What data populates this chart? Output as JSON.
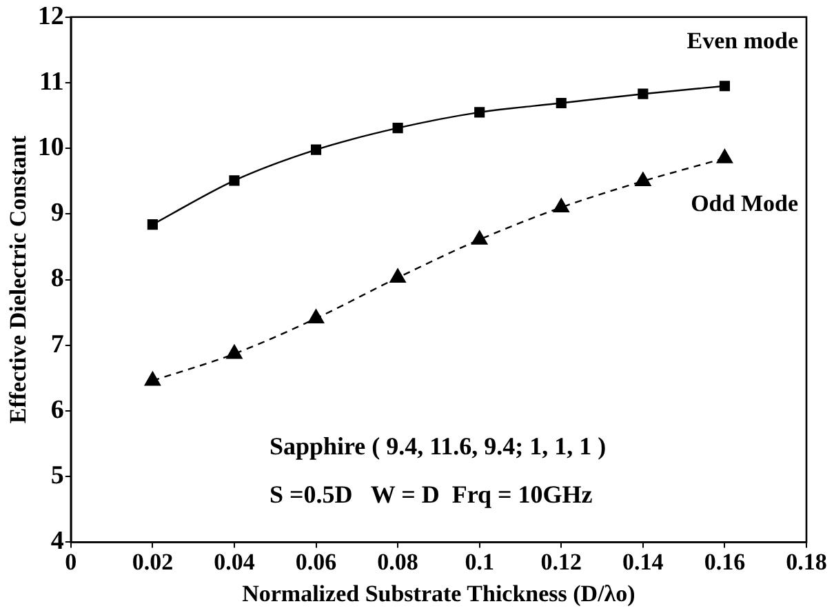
{
  "chart_data": {
    "type": "line",
    "xlabel": "Normalized Substrate Thickness (D/λo)",
    "ylabel": "Effective Dielectric Constant",
    "x": [
      0.02,
      0.04,
      0.06,
      0.08,
      0.1,
      0.12,
      0.14,
      0.16
    ],
    "series": [
      {
        "name": "Even mode",
        "color": "#000000",
        "marker": "square",
        "line_style": "solid",
        "values": [
          8.84,
          9.51,
          9.98,
          10.31,
          10.55,
          10.69,
          10.83,
          10.95
        ]
      },
      {
        "name": "Odd Mode",
        "color": "#000000",
        "marker": "triangle",
        "line_style": "dashed",
        "values": [
          6.46,
          6.87,
          7.41,
          8.03,
          8.61,
          9.1,
          9.5,
          9.85
        ]
      }
    ],
    "xlim": [
      0,
      0.18
    ],
    "xticks": [
      0,
      0.02,
      0.04,
      0.06,
      0.08,
      0.1,
      0.12,
      0.14,
      0.16,
      0.18
    ],
    "ylim": [
      4,
      12
    ],
    "yticks": [
      4,
      5,
      6,
      7,
      8,
      9,
      10,
      11,
      12
    ],
    "grid": false,
    "legend": false,
    "annotations": [
      "Sapphire ( 9.4, 11.6, 9.4; 1, 1, 1 )",
      "S =0.5D   W = D  Frq = 10GHz"
    ]
  }
}
